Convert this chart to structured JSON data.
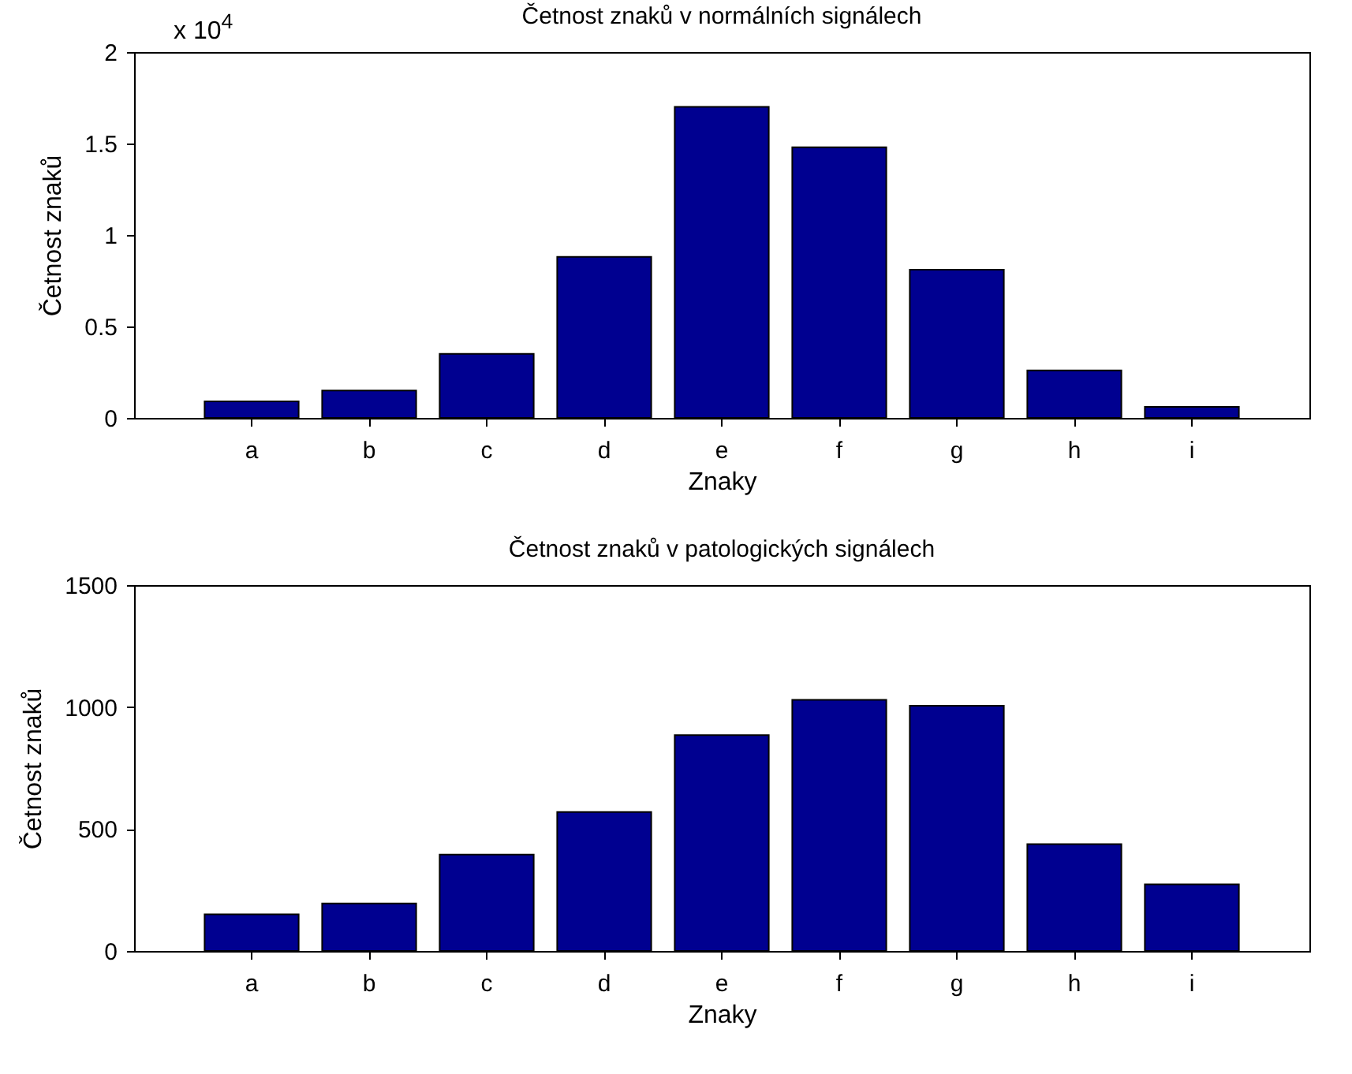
{
  "chart_data": [
    {
      "type": "bar",
      "title": "Četnost znaků v normálních signálech",
      "xlabel": "Znaky",
      "ylabel": "Četnost znaků",
      "annotations": [
        "x 10$^{4}$"
      ],
      "categories": [
        "a",
        "b",
        "c",
        "d",
        "e",
        "f",
        "g",
        "h",
        "i"
      ],
      "series": [
        {
          "color": "#000090",
          "values": [
            0.09,
            0.15,
            0.35,
            0.88,
            1.7,
            1.48,
            0.81,
            0.26,
            0.06
          ]
        }
      ],
      "ylim": [
        0,
        2
      ],
      "yticks": [
        0,
        0.5,
        1,
        1.5,
        2
      ],
      "grid": false
    },
    {
      "type": "bar",
      "title": "Četnost znaků v patologických signálech",
      "xlabel": "Znaky",
      "ylabel": "Četnost znaků",
      "categories": [
        "a",
        "b",
        "c",
        "d",
        "e",
        "f",
        "g",
        "h",
        "i"
      ],
      "series": [
        {
          "color": "#000090",
          "values": [
            150,
            195,
            395,
            570,
            885,
            1030,
            1005,
            438,
            273
          ]
        }
      ],
      "ylim": [
        0,
        1500
      ],
      "yticks": [
        0,
        500,
        1000,
        1500
      ],
      "grid": false
    }
  ]
}
